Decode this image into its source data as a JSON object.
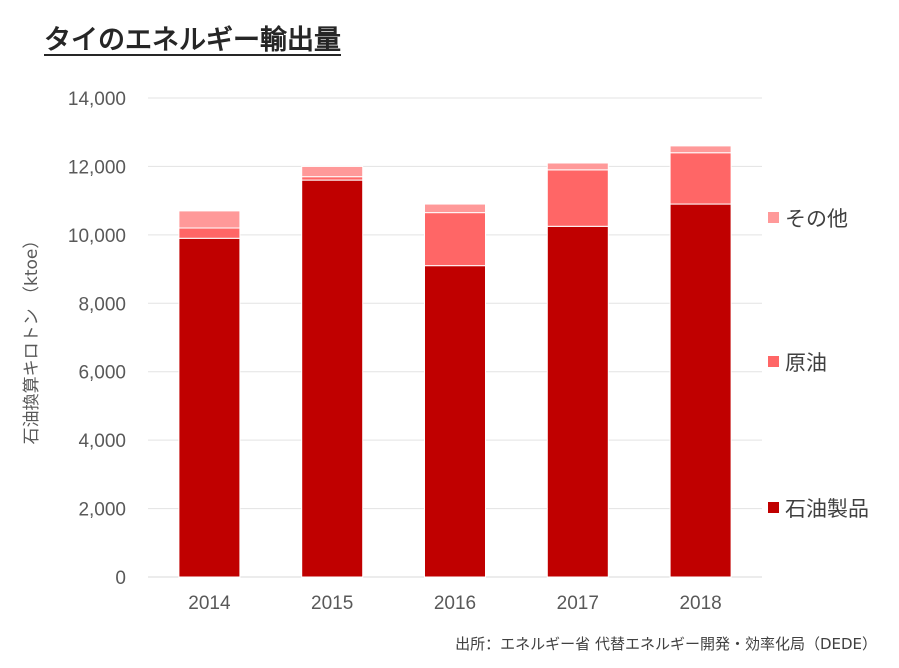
{
  "chart_data": {
    "type": "bar",
    "stacked": true,
    "title": "タイのエネルギー輸出量",
    "ylabel": "石油換算キロトン （ktoe）",
    "xlabel": "",
    "categories": [
      "2014",
      "2015",
      "2016",
      "2017",
      "2018"
    ],
    "ylim": [
      0,
      14000
    ],
    "yticks": [
      0,
      2000,
      4000,
      6000,
      8000,
      10000,
      12000,
      14000
    ],
    "ytick_labels": [
      "0",
      "2,000",
      "4,000",
      "6,000",
      "8,000",
      "10,000",
      "12,000",
      "14,000"
    ],
    "grid": true,
    "legend_position": "right",
    "series": [
      {
        "name": "石油製品",
        "color": "#c00000",
        "values": [
          9900,
          11600,
          9100,
          10250,
          10900
        ]
      },
      {
        "name": "原油",
        "color": "#ff6666",
        "values": [
          300,
          100,
          1550,
          1650,
          1500
        ]
      },
      {
        "name": "その他",
        "color": "#ff9999",
        "values": [
          500,
          300,
          250,
          200,
          200
        ]
      }
    ],
    "source": "出所：エネルギー省 代替エネルギー開発・効率化局（DEDE）"
  }
}
